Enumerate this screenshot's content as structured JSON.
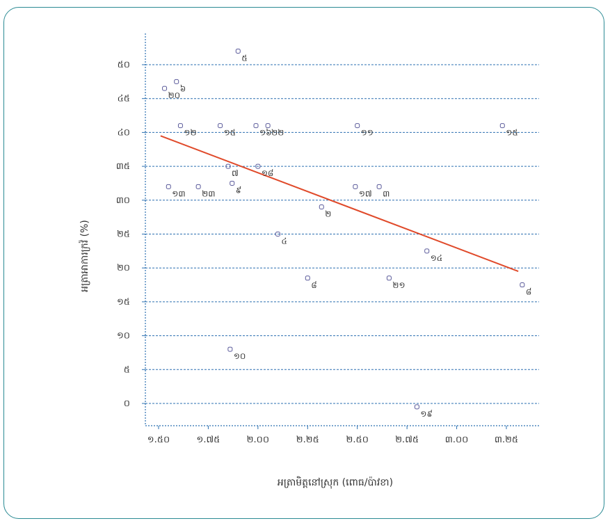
{
  "chart_data": {
    "type": "scatter",
    "title": "",
    "xlabel": "អត្រាមិត្តនៅស្រុក (ពោធ/ប៉ាវខា)",
    "ylabel": "អត្រាអាការក្រវ៉ (%)",
    "xlim": [
      1.47,
      3.35
    ],
    "ylim": [
      -2,
      53
    ],
    "x_ticks": [
      1.5,
      1.75,
      2.0,
      2.25,
      2.5,
      2.75,
      3.0,
      3.25
    ],
    "x_tick_labels": [
      "១.៥០",
      "១.៧៥",
      "២.០០",
      "២.២៥",
      "២.៥០",
      "២.៧៥",
      "៣.០០",
      "៣.២៥"
    ],
    "y_ticks": [
      0,
      5,
      10,
      15,
      20,
      25,
      30,
      35,
      40,
      45,
      50
    ],
    "y_tick_labels": [
      "០",
      "៥",
      "១០",
      "១៥",
      "២០",
      "២៥",
      "៣០",
      "៣៥",
      "៤០",
      "៤៥",
      "៥០"
    ],
    "grid": "horizontal",
    "marker_color": "#5a5a9a",
    "line_color": "#e04a2a",
    "grid_color": "#2a6fb0",
    "points": [
      {
        "x": 1.53,
        "y": 46.5,
        "label": "២០"
      },
      {
        "x": 1.59,
        "y": 47.5,
        "label": "៦"
      },
      {
        "x": 1.61,
        "y": 41.0,
        "label": "១២"
      },
      {
        "x": 1.55,
        "y": 32.0,
        "label": "១៣"
      },
      {
        "x": 1.7,
        "y": 32.0,
        "label": "២៣"
      },
      {
        "x": 1.81,
        "y": 41.0,
        "label": "១៥"
      },
      {
        "x": 1.85,
        "y": 35.0,
        "label": "៧"
      },
      {
        "x": 1.87,
        "y": 32.5,
        "label": "៩"
      },
      {
        "x": 1.9,
        "y": 52.0,
        "label": "៥"
      },
      {
        "x": 1.99,
        "y": 41.0,
        "label": "១៦"
      },
      {
        "x": 2.05,
        "y": 41.0,
        "label": "២២"
      },
      {
        "x": 2.0,
        "y": 35.0,
        "label": "១៨"
      },
      {
        "x": 2.1,
        "y": 25.0,
        "label": "៤"
      },
      {
        "x": 2.25,
        "y": 18.5,
        "label": "៨"
      },
      {
        "x": 2.32,
        "y": 29.0,
        "label": "២"
      },
      {
        "x": 2.49,
        "y": 32.0,
        "label": "១៧"
      },
      {
        "x": 2.5,
        "y": 41.0,
        "label": "១១"
      },
      {
        "x": 2.61,
        "y": 32.0,
        "label": "៣"
      },
      {
        "x": 2.66,
        "y": 18.5,
        "label": "២១"
      },
      {
        "x": 2.85,
        "y": 22.5,
        "label": "១៤"
      },
      {
        "x": 2.8,
        "y": -0.5,
        "label": "១៩"
      },
      {
        "x": 3.23,
        "y": 41.0,
        "label": "១៥"
      },
      {
        "x": 3.33,
        "y": 17.5,
        "label": "៨"
      },
      {
        "x": 1.86,
        "y": 8.0,
        "label": "១០"
      }
    ],
    "trendline": {
      "x": [
        1.51,
        3.31
      ],
      "y": [
        39.5,
        19.5
      ]
    }
  }
}
